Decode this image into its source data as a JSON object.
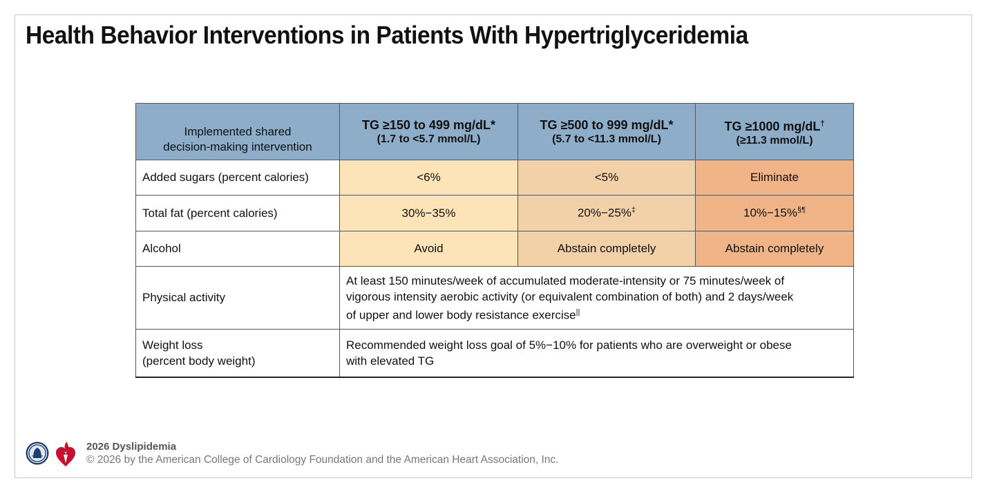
{
  "title": "Health Behavior Interventions in Patients With Hypertriglyceridemia",
  "table": {
    "header": {
      "first_line1": "Implemented shared",
      "first_line2": "decision-making intervention",
      "col1_main": "TG ≥150 to 499 mg/dL*",
      "col1_sub": "(1.7 to <5.7 mmol/L)",
      "col2_main": "TG ≥500 to 999 mg/dL*",
      "col2_sub": "(5.7 to <11.3 mmol/L)",
      "col3_main": "TG ≥1000 mg/dL",
      "col3_mark": "†",
      "col3_sub": "(≥11.3 mmol/L)"
    },
    "rows": [
      {
        "label": "Added sugars (percent calories)",
        "c1": "<6%",
        "c2": "<5%",
        "c3": "Eliminate"
      },
      {
        "label": "Total fat (percent calories)",
        "c1": "30%−35%",
        "c2": "20%−25%",
        "c2_mark": "‡",
        "c3": "10%−15%",
        "c3_mark": "§¶"
      },
      {
        "label": "Alcohol",
        "c1": "Avoid",
        "c2": "Abstain completely",
        "c3": "Abstain completely"
      }
    ],
    "physical_activity": {
      "label": "Physical activity",
      "line1": "At least 150 minutes/week of accumulated moderate-intensity or 75 minutes/week of",
      "line2": "vigorous intensity aerobic activity (or equivalent combination of both) and 2 days/week",
      "line3": "of upper and lower body resistance exercise",
      "mark": "||"
    },
    "weight_loss": {
      "label_line1": "Weight loss",
      "label_line2": "(percent body weight)",
      "line1": "Recommended weight loss goal of 5%−10% for patients who are overweight or obese",
      "line2": "with elevated TG"
    }
  },
  "footer": {
    "guideline": "2026 Dyslipidemia",
    "copyright": "© 2026 by the American College of Cardiology Foundation and the American Heart Association, Inc."
  },
  "logos": [
    "acc-seal-icon",
    "aha-heart-torch-icon"
  ],
  "colors": {
    "header_bg": "#8eadc8",
    "tier1_bg": "#fde3b8",
    "tier2_bg": "#f2d0a8",
    "tier3_bg": "#f0b487",
    "acc_navy": "#1c3f73",
    "aha_red": "#c8102e"
  }
}
